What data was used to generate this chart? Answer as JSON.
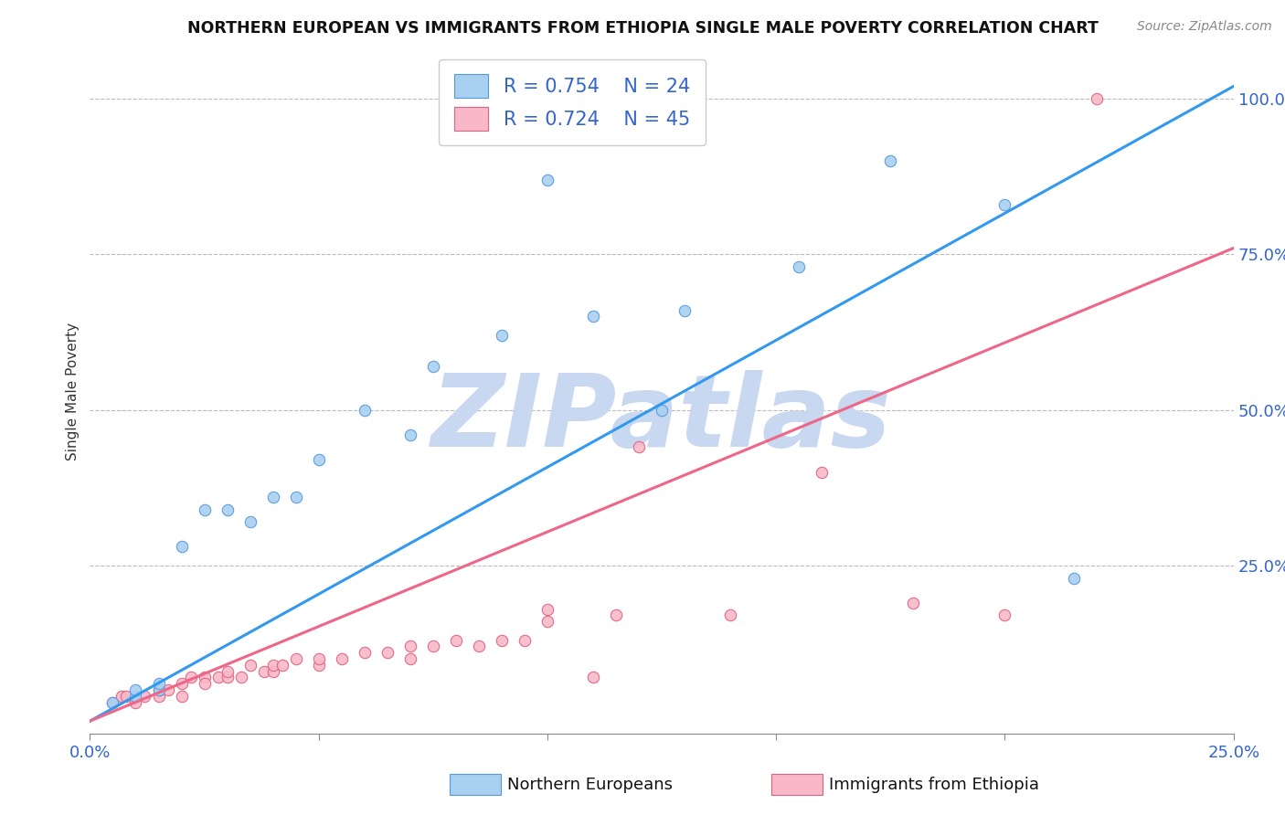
{
  "title": "NORTHERN EUROPEAN VS IMMIGRANTS FROM ETHIOPIA SINGLE MALE POVERTY CORRELATION CHART",
  "source": "Source: ZipAtlas.com",
  "ylabel": "Single Male Poverty",
  "xlim": [
    0.0,
    0.25
  ],
  "ylim": [
    -0.02,
    1.08
  ],
  "xticks": [
    0.0,
    0.05,
    0.1,
    0.15,
    0.2,
    0.25
  ],
  "xtick_labels": [
    "0.0%",
    "",
    "",
    "",
    "",
    "25.0%"
  ],
  "ytick_positions": [
    0.25,
    0.5,
    0.75,
    1.0
  ],
  "ytick_labels": [
    "25.0%",
    "50.0%",
    "75.0%",
    "100.0%"
  ],
  "blue_R": 0.754,
  "blue_N": 24,
  "pink_R": 0.724,
  "pink_N": 45,
  "blue_fill_color": "#A8D0F0",
  "blue_edge_color": "#5599DD",
  "pink_fill_color": "#F8B8C8",
  "pink_edge_color": "#E06080",
  "blue_line_color": "#3399EE",
  "pink_line_color": "#EE6688",
  "legend_label_blue": "Northern Europeans",
  "legend_label_pink": "Immigrants from Ethiopia",
  "watermark": "ZIPatlas",
  "watermark_color": "#C8D8F0",
  "blue_scatter_x": [
    0.005,
    0.01,
    0.01,
    0.015,
    0.015,
    0.02,
    0.025,
    0.03,
    0.035,
    0.04,
    0.045,
    0.05,
    0.06,
    0.07,
    0.075,
    0.09,
    0.1,
    0.11,
    0.125,
    0.13,
    0.155,
    0.175,
    0.2,
    0.215
  ],
  "blue_scatter_y": [
    0.03,
    0.04,
    0.05,
    0.05,
    0.06,
    0.28,
    0.34,
    0.34,
    0.32,
    0.36,
    0.36,
    0.42,
    0.5,
    0.46,
    0.57,
    0.62,
    0.87,
    0.65,
    0.5,
    0.66,
    0.73,
    0.9,
    0.83,
    0.23
  ],
  "pink_scatter_x": [
    0.005,
    0.007,
    0.008,
    0.01,
    0.012,
    0.015,
    0.015,
    0.017,
    0.02,
    0.02,
    0.022,
    0.025,
    0.025,
    0.028,
    0.03,
    0.03,
    0.033,
    0.035,
    0.038,
    0.04,
    0.04,
    0.042,
    0.045,
    0.05,
    0.05,
    0.055,
    0.06,
    0.065,
    0.07,
    0.07,
    0.075,
    0.08,
    0.085,
    0.09,
    0.095,
    0.1,
    0.1,
    0.11,
    0.115,
    0.12,
    0.14,
    0.16,
    0.18,
    0.2,
    0.22
  ],
  "pink_scatter_y": [
    0.03,
    0.04,
    0.04,
    0.03,
    0.04,
    0.04,
    0.05,
    0.05,
    0.04,
    0.06,
    0.07,
    0.07,
    0.06,
    0.07,
    0.07,
    0.08,
    0.07,
    0.09,
    0.08,
    0.08,
    0.09,
    0.09,
    0.1,
    0.09,
    0.1,
    0.1,
    0.11,
    0.11,
    0.1,
    0.12,
    0.12,
    0.13,
    0.12,
    0.13,
    0.13,
    0.16,
    0.18,
    0.07,
    0.17,
    0.44,
    0.17,
    0.4,
    0.19,
    0.17,
    1.0
  ],
  "blue_line_x": [
    0.0,
    0.25
  ],
  "blue_line_y": [
    0.0,
    1.02
  ],
  "pink_line_x": [
    0.0,
    0.25
  ],
  "pink_line_y": [
    0.0,
    0.76
  ]
}
